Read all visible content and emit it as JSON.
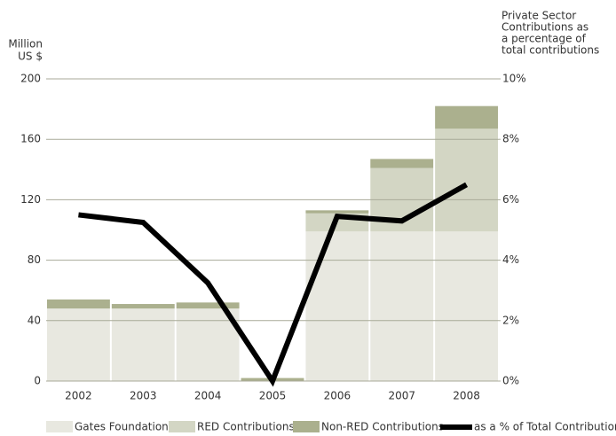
{
  "chart_data": {
    "type": "bar",
    "y_label_lines": [
      "Million",
      "US $"
    ],
    "y2_label_lines": [
      "Private Sector",
      "Contributions as",
      "a percentage of",
      "total contributions"
    ],
    "categories": [
      "2002",
      "2003",
      "2004",
      "2005",
      "2006",
      "2007",
      "2008"
    ],
    "stacked": true,
    "series": [
      {
        "name": "Gates Foundation",
        "color": "#e8e8e0",
        "values": [
          48,
          48,
          48,
          0,
          99,
          99,
          99
        ]
      },
      {
        "name": "RED Contributions",
        "color": "#d3d6c4",
        "values": [
          0,
          0,
          0,
          0,
          12,
          42,
          68
        ]
      },
      {
        "name": "Non-RED Contributions",
        "color": "#abb08e",
        "values": [
          6,
          3,
          4,
          2,
          2,
          6,
          15
        ]
      },
      {
        "name": "as a % of Total Contributions",
        "color": "#000000",
        "type": "line",
        "axis": "y2",
        "values": [
          5.5,
          5.25,
          3.25,
          0,
          5.45,
          5.3,
          6.5
        ]
      }
    ],
    "ylim": [
      0,
      200
    ],
    "yticks": [
      0,
      40,
      80,
      120,
      160,
      200
    ],
    "y2lim": [
      0,
      10
    ],
    "y2ticks": [
      {
        "value": 0,
        "label": "0%"
      },
      {
        "value": 2,
        "label": "2%"
      },
      {
        "value": 4,
        "label": "4%"
      },
      {
        "value": 6,
        "label": "6%"
      },
      {
        "value": 8,
        "label": "8%"
      },
      {
        "value": 10,
        "label": "10%"
      }
    ],
    "grid": true,
    "legend": "bottom"
  }
}
